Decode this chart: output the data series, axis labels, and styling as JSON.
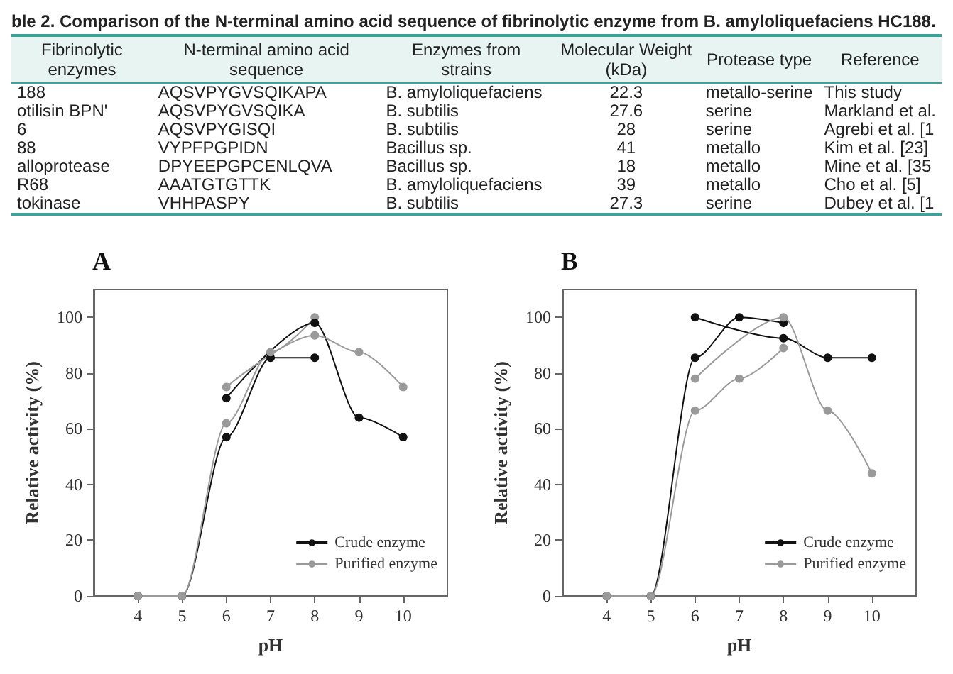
{
  "chart_data": [
    {
      "type": "other",
      "title": "ble 2. Comparison of the N-terminal amino acid sequence of fibrinolytic enzyme from B. amyloliquefaciens HC188.",
      "categories": [
        "Fibrinolytic enzymes",
        "N-terminal amino acid sequence",
        "Enzymes from strains",
        "Molecular Weight (kDa)",
        "Protease type",
        "Reference"
      ],
      "cell_labels": [
        [
          "188",
          "AQSVPYGVSQIKAPA",
          "B. amyloliquefaciens",
          "22.3",
          "metallo-serine",
          "This study"
        ],
        [
          "otilisin BPN'",
          "AQSVPYGVSQIKA",
          "B. subtilis",
          "27.6",
          "serine",
          "Markland et al."
        ],
        [
          "6",
          "AQSVPYGISQI",
          "B. subtilis",
          "28",
          "serine",
          "Agrebi et al. [1"
        ],
        [
          "88",
          "VYPFPGPIDN",
          "Bacillus sp.",
          "41",
          "metallo",
          "Kim et al. [23]"
        ],
        [
          "alloprotease",
          "DPYEEPGPCENLQVA",
          "Bacillus sp.",
          "18",
          "metallo",
          "Mine et al. [35"
        ],
        [
          "R68",
          "AAATGTGTTK",
          "B. amyloliquefaciens",
          "39",
          "metallo",
          "Cho et al. [5]"
        ],
        [
          "tokinase",
          "VHHPASPY",
          "B. subtilis",
          "27.3",
          "serine",
          "Dubey et al. [1"
        ]
      ]
    },
    {
      "type": "line",
      "title": "A",
      "xlabel": "pH",
      "ylabel": "Relative activity (%)",
      "xlim": [
        3,
        11
      ],
      "xticks": [
        4,
        5,
        6,
        7,
        8,
        9,
        10
      ],
      "ylim": [
        0,
        110
      ],
      "yticks": [
        0,
        20,
        40,
        60,
        80,
        100
      ],
      "grid": false,
      "legend": "bottom right",
      "marker": "circle",
      "series": [
        {
          "name": "Crude enzyme",
          "color": "#111111",
          "x": [
            4,
            5,
            6,
            7,
            8
          ],
          "values": [
            0,
            0,
            57,
            85.5,
            85.5
          ]
        },
        {
          "name": "Purified enzyme",
          "color": "#9a9a9a",
          "x": [
            4,
            5,
            6,
            7,
            8
          ],
          "values": [
            0,
            0,
            62,
            87.5,
            100
          ]
        },
        {
          "color": "#111111",
          "x": [
            6,
            8,
            9,
            10
          ],
          "values": [
            71,
            98,
            64,
            57
          ]
        },
        {
          "color": "#9a9a9a",
          "x": [
            6,
            8,
            9,
            10
          ],
          "values": [
            75,
            93.5,
            87.5,
            75
          ]
        }
      ]
    },
    {
      "type": "line",
      "title": "B",
      "xlabel": "pH",
      "ylabel": "Relative activity (%)",
      "xlim": [
        3,
        11
      ],
      "xticks": [
        4,
        5,
        6,
        7,
        8,
        9,
        10
      ],
      "ylim": [
        0,
        110
      ],
      "yticks": [
        0,
        20,
        40,
        60,
        80,
        100
      ],
      "grid": false,
      "legend": "bottom right",
      "marker": "circle",
      "series": [
        {
          "name": "Crude enzyme",
          "color": "#111111",
          "x": [
            4,
            5,
            6,
            7,
            8
          ],
          "values": [
            0,
            0,
            85.5,
            100,
            98
          ]
        },
        {
          "name": "Purified enzyme",
          "color": "#9a9a9a",
          "x": [
            4,
            5,
            6,
            7,
            8
          ],
          "values": [
            0,
            0,
            66.5,
            78,
            89
          ]
        },
        {
          "color": "#111111",
          "x": [
            6,
            8,
            9,
            10
          ],
          "values": [
            100,
            92.5,
            85.5,
            85.5
          ]
        },
        {
          "color": "#9a9a9a",
          "x": [
            6,
            8,
            9,
            10
          ],
          "values": [
            78,
            100,
            66.5,
            44
          ]
        }
      ]
    }
  ]
}
